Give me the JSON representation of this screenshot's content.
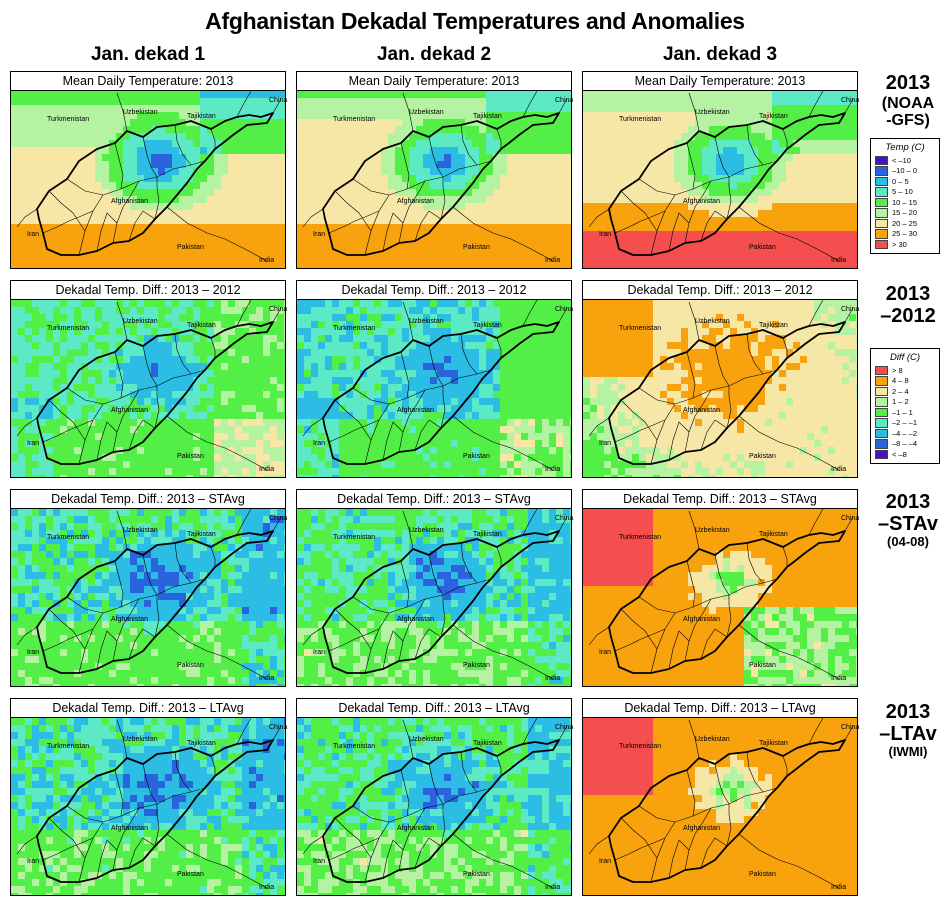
{
  "title": "Afghanistan Dekadal Temperatures and Anomalies",
  "columns": [
    "Jan. dekad 1",
    "Jan. dekad 2",
    "Jan. dekad 3"
  ],
  "rows": [
    {
      "titles": [
        "Mean Daily Temperature: 2013",
        "Mean Daily Temperature: 2013",
        "Mean Daily Temperature: 2013"
      ],
      "label": [
        "2013",
        "(NOAA",
        "-GFS)"
      ]
    },
    {
      "titles": [
        "Dekadal Temp. Diff.: 2013 – 2012",
        "Dekadal Temp. Diff.: 2013 – 2012",
        "Dekadal Temp. Diff.: 2013 – 2012"
      ],
      "label": [
        "2013",
        "–2012"
      ]
    },
    {
      "titles": [
        "Dekadal Temp. Diff.: 2013 – STAvg",
        "Dekadal Temp. Diff.: 2013 – STAvg",
        "Dekadal Temp. Diff.: 2013 – STAvg"
      ],
      "label": [
        "2013",
        "–STAv",
        "(04-08)"
      ]
    },
    {
      "titles": [
        "Dekadal Temp. Diff.: 2013 – LTAvg",
        "Dekadal Temp. Diff.: 2013 – LTAvg",
        "Dekadal Temp. Diff.: 2013 – LTAvg"
      ],
      "label": [
        "2013",
        "–LTAv",
        "(IWMI)"
      ]
    }
  ],
  "countries": [
    "Uzbekistan",
    "Tajikistan",
    "China",
    "Turkmenistan",
    "Afghanistan",
    "Iran",
    "Pakistan",
    "India"
  ],
  "temp_legend": {
    "title": "Temp (C)",
    "items": [
      {
        "label": "< –10",
        "color": "#4a0fc7"
      },
      {
        "label": "–10 – 0",
        "color": "#2a63dc"
      },
      {
        "label": "0 – 5",
        "color": "#2bbde4"
      },
      {
        "label": "5 – 10",
        "color": "#5ceac6"
      },
      {
        "label": "10 – 15",
        "color": "#54ef46"
      },
      {
        "label": "15 – 20",
        "color": "#b5f3a3"
      },
      {
        "label": "20 – 25",
        "color": "#f7e7a6"
      },
      {
        "label": "25 – 30",
        "color": "#f8a30e"
      },
      {
        "label": "> 30",
        "color": "#f44e4e"
      }
    ]
  },
  "diff_legend": {
    "title": "Diff (C)",
    "items": [
      {
        "label": "> 8",
        "color": "#f44e4e"
      },
      {
        "label": "4 – 8",
        "color": "#f8a30e"
      },
      {
        "label": "2 – 4",
        "color": "#f7e7a6"
      },
      {
        "label": "1 – 2",
        "color": "#b5f3a3"
      },
      {
        "label": "–1 – 1",
        "color": "#54ef46"
      },
      {
        "label": "–2 – –1",
        "color": "#5ceac6"
      },
      {
        "label": "–4 – –2",
        "color": "#2bbde4"
      },
      {
        "label": "–8 – –4",
        "color": "#2a63dc"
      },
      {
        "label": "< –8",
        "color": "#4a0fc7"
      }
    ]
  }
}
